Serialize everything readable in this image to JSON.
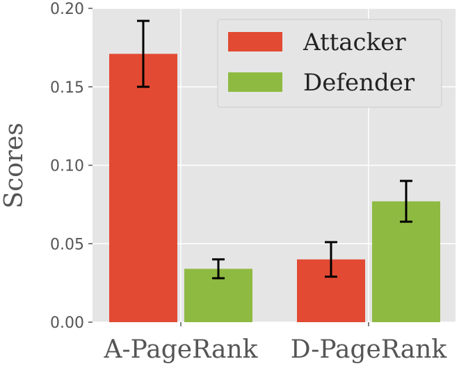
{
  "chart_data": {
    "type": "bar",
    "categories": [
      "A-PageRank",
      "D-PageRank"
    ],
    "series": [
      {
        "name": "Attacker",
        "values": [
          0.171,
          0.04
        ],
        "errors": [
          0.021,
          0.011
        ],
        "color": "#E24A33"
      },
      {
        "name": "Defender",
        "values": [
          0.034,
          0.077
        ],
        "errors": [
          0.006,
          0.013
        ],
        "color": "#8EBA42"
      }
    ],
    "ylabel": "Scores",
    "xlabel": "",
    "ylim": [
      0,
      0.2
    ],
    "yticks": [
      "0.00",
      "0.05",
      "0.10",
      "0.15",
      "0.20"
    ],
    "grid": true,
    "legend_position": "top-right",
    "background_color": "#E5E5E5"
  }
}
